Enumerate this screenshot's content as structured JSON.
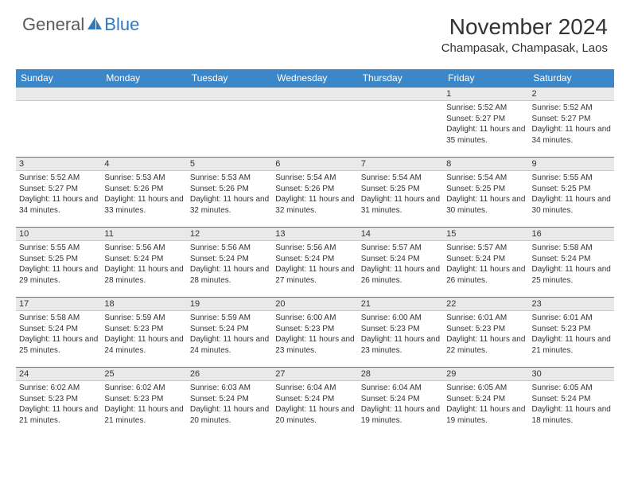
{
  "logo": {
    "text1": "General",
    "text2": "Blue"
  },
  "title": "November 2024",
  "location": "Champasak, Champasak, Laos",
  "header_color": "#3b87c8",
  "dayname_bg": "#e9e9e9",
  "columns": [
    "Sunday",
    "Monday",
    "Tuesday",
    "Wednesday",
    "Thursday",
    "Friday",
    "Saturday"
  ],
  "weeks": [
    [
      {
        "day": "",
        "sunrise": "",
        "sunset": "",
        "daylight": ""
      },
      {
        "day": "",
        "sunrise": "",
        "sunset": "",
        "daylight": ""
      },
      {
        "day": "",
        "sunrise": "",
        "sunset": "",
        "daylight": ""
      },
      {
        "day": "",
        "sunrise": "",
        "sunset": "",
        "daylight": ""
      },
      {
        "day": "",
        "sunrise": "",
        "sunset": "",
        "daylight": ""
      },
      {
        "day": "1",
        "sunrise": "Sunrise: 5:52 AM",
        "sunset": "Sunset: 5:27 PM",
        "daylight": "Daylight: 11 hours and 35 minutes."
      },
      {
        "day": "2",
        "sunrise": "Sunrise: 5:52 AM",
        "sunset": "Sunset: 5:27 PM",
        "daylight": "Daylight: 11 hours and 34 minutes."
      }
    ],
    [
      {
        "day": "3",
        "sunrise": "Sunrise: 5:52 AM",
        "sunset": "Sunset: 5:27 PM",
        "daylight": "Daylight: 11 hours and 34 minutes."
      },
      {
        "day": "4",
        "sunrise": "Sunrise: 5:53 AM",
        "sunset": "Sunset: 5:26 PM",
        "daylight": "Daylight: 11 hours and 33 minutes."
      },
      {
        "day": "5",
        "sunrise": "Sunrise: 5:53 AM",
        "sunset": "Sunset: 5:26 PM",
        "daylight": "Daylight: 11 hours and 32 minutes."
      },
      {
        "day": "6",
        "sunrise": "Sunrise: 5:54 AM",
        "sunset": "Sunset: 5:26 PM",
        "daylight": "Daylight: 11 hours and 32 minutes."
      },
      {
        "day": "7",
        "sunrise": "Sunrise: 5:54 AM",
        "sunset": "Sunset: 5:25 PM",
        "daylight": "Daylight: 11 hours and 31 minutes."
      },
      {
        "day": "8",
        "sunrise": "Sunrise: 5:54 AM",
        "sunset": "Sunset: 5:25 PM",
        "daylight": "Daylight: 11 hours and 30 minutes."
      },
      {
        "day": "9",
        "sunrise": "Sunrise: 5:55 AM",
        "sunset": "Sunset: 5:25 PM",
        "daylight": "Daylight: 11 hours and 30 minutes."
      }
    ],
    [
      {
        "day": "10",
        "sunrise": "Sunrise: 5:55 AM",
        "sunset": "Sunset: 5:25 PM",
        "daylight": "Daylight: 11 hours and 29 minutes."
      },
      {
        "day": "11",
        "sunrise": "Sunrise: 5:56 AM",
        "sunset": "Sunset: 5:24 PM",
        "daylight": "Daylight: 11 hours and 28 minutes."
      },
      {
        "day": "12",
        "sunrise": "Sunrise: 5:56 AM",
        "sunset": "Sunset: 5:24 PM",
        "daylight": "Daylight: 11 hours and 28 minutes."
      },
      {
        "day": "13",
        "sunrise": "Sunrise: 5:56 AM",
        "sunset": "Sunset: 5:24 PM",
        "daylight": "Daylight: 11 hours and 27 minutes."
      },
      {
        "day": "14",
        "sunrise": "Sunrise: 5:57 AM",
        "sunset": "Sunset: 5:24 PM",
        "daylight": "Daylight: 11 hours and 26 minutes."
      },
      {
        "day": "15",
        "sunrise": "Sunrise: 5:57 AM",
        "sunset": "Sunset: 5:24 PM",
        "daylight": "Daylight: 11 hours and 26 minutes."
      },
      {
        "day": "16",
        "sunrise": "Sunrise: 5:58 AM",
        "sunset": "Sunset: 5:24 PM",
        "daylight": "Daylight: 11 hours and 25 minutes."
      }
    ],
    [
      {
        "day": "17",
        "sunrise": "Sunrise: 5:58 AM",
        "sunset": "Sunset: 5:24 PM",
        "daylight": "Daylight: 11 hours and 25 minutes."
      },
      {
        "day": "18",
        "sunrise": "Sunrise: 5:59 AM",
        "sunset": "Sunset: 5:23 PM",
        "daylight": "Daylight: 11 hours and 24 minutes."
      },
      {
        "day": "19",
        "sunrise": "Sunrise: 5:59 AM",
        "sunset": "Sunset: 5:24 PM",
        "daylight": "Daylight: 11 hours and 24 minutes."
      },
      {
        "day": "20",
        "sunrise": "Sunrise: 6:00 AM",
        "sunset": "Sunset: 5:23 PM",
        "daylight": "Daylight: 11 hours and 23 minutes."
      },
      {
        "day": "21",
        "sunrise": "Sunrise: 6:00 AM",
        "sunset": "Sunset: 5:23 PM",
        "daylight": "Daylight: 11 hours and 23 minutes."
      },
      {
        "day": "22",
        "sunrise": "Sunrise: 6:01 AM",
        "sunset": "Sunset: 5:23 PM",
        "daylight": "Daylight: 11 hours and 22 minutes."
      },
      {
        "day": "23",
        "sunrise": "Sunrise: 6:01 AM",
        "sunset": "Sunset: 5:23 PM",
        "daylight": "Daylight: 11 hours and 21 minutes."
      }
    ],
    [
      {
        "day": "24",
        "sunrise": "Sunrise: 6:02 AM",
        "sunset": "Sunset: 5:23 PM",
        "daylight": "Daylight: 11 hours and 21 minutes."
      },
      {
        "day": "25",
        "sunrise": "Sunrise: 6:02 AM",
        "sunset": "Sunset: 5:23 PM",
        "daylight": "Daylight: 11 hours and 21 minutes."
      },
      {
        "day": "26",
        "sunrise": "Sunrise: 6:03 AM",
        "sunset": "Sunset: 5:24 PM",
        "daylight": "Daylight: 11 hours and 20 minutes."
      },
      {
        "day": "27",
        "sunrise": "Sunrise: 6:04 AM",
        "sunset": "Sunset: 5:24 PM",
        "daylight": "Daylight: 11 hours and 20 minutes."
      },
      {
        "day": "28",
        "sunrise": "Sunrise: 6:04 AM",
        "sunset": "Sunset: 5:24 PM",
        "daylight": "Daylight: 11 hours and 19 minutes."
      },
      {
        "day": "29",
        "sunrise": "Sunrise: 6:05 AM",
        "sunset": "Sunset: 5:24 PM",
        "daylight": "Daylight: 11 hours and 19 minutes."
      },
      {
        "day": "30",
        "sunrise": "Sunrise: 6:05 AM",
        "sunset": "Sunset: 5:24 PM",
        "daylight": "Daylight: 11 hours and 18 minutes."
      }
    ]
  ]
}
